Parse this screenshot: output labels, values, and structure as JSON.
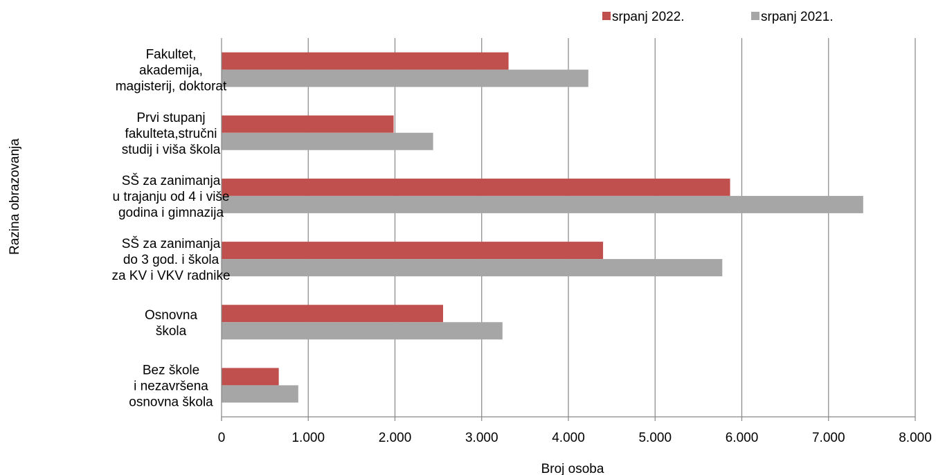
{
  "chart_data": {
    "type": "bar",
    "orientation": "horizontal",
    "categories": [
      [
        "Fakultet,",
        "akademija,",
        "magisterij, doktorat"
      ],
      [
        "Prvi stupanj",
        "fakulteta,stručni",
        "studij i viša škola"
      ],
      [
        "SŠ za zanimanja",
        "u trajanju od 4 i više",
        "godina i gimnazija"
      ],
      [
        "SŠ za zanimanja",
        "do 3 god. i škola",
        "za KV i VKV radnike"
      ],
      [
        "Osnovna",
        "škola"
      ],
      [
        "Bez škole",
        "i nezavršena",
        "osnovna škola"
      ]
    ],
    "series": [
      {
        "name": "srpanj 2022.",
        "color": "#c0504d",
        "values": [
          3310,
          1985,
          5865,
          4400,
          2555,
          660
        ]
      },
      {
        "name": "srpanj 2021.",
        "color": "#a6a6a6",
        "values": [
          4230,
          2440,
          7400,
          5775,
          3240,
          885
        ]
      }
    ],
    "xlabel": "Broj osoba",
    "ylabel": "Razina obrazovanja",
    "xlim": [
      0,
      8000
    ],
    "ticks": [
      0,
      1000,
      2000,
      3000,
      4000,
      5000,
      6000,
      7000,
      8000
    ],
    "tick_labels": [
      "0",
      "1.000",
      "2.000",
      "3.000",
      "4.000",
      "5.000",
      "6.000",
      "7.000",
      "8.000"
    ],
    "grid": "vertical",
    "legend_position": "top-right"
  }
}
